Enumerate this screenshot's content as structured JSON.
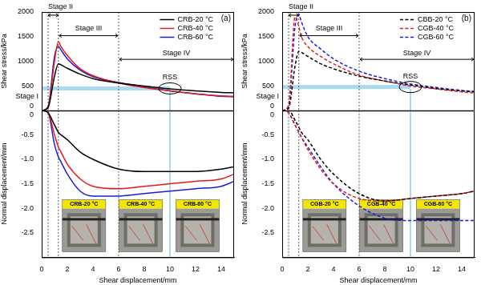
{
  "chart_data": [
    {
      "type": "line",
      "title": "(a)",
      "x": [
        0,
        0.5,
        1,
        1.3,
        1.5,
        2,
        3,
        4,
        6,
        8,
        10,
        12,
        14,
        15
      ],
      "xlim": [
        0,
        15
      ],
      "xticks": [
        0,
        2,
        4,
        6,
        8,
        10,
        12,
        14
      ],
      "xlabel": "Shear displacement/mm",
      "ylabel": "Shear stress/kPa",
      "ylim": [
        0,
        2000
      ],
      "yticks": [
        0,
        500,
        1000,
        1500,
        2000
      ],
      "y2label": "Normal displacement/mm",
      "y2lim": [
        -3,
        0
      ],
      "y2ticks": [
        -2.5,
        {
          "value": -2,
          "label": "-2.0"
        },
        -1.5,
        {
          "value": -1,
          "label": "-1.0"
        },
        -0.5,
        0
      ],
      "grid": false,
      "legend": "top-right",
      "series": [
        {
          "name": "CRB-20 °C",
          "color": "#000000",
          "line_style": "solid",
          "values": [
            0,
            60,
            700,
            950,
            930,
            860,
            740,
            650,
            560,
            500,
            440,
            400,
            370,
            360
          ]
        },
        {
          "name": "CRB-40 °C",
          "color": "#e41a1c",
          "line_style": "solid",
          "values": [
            0,
            80,
            1000,
            1400,
            1300,
            1120,
            850,
            710,
            560,
            470,
            400,
            340,
            300,
            290
          ]
        },
        {
          "name": "CRB-60 °C",
          "color": "#1c1cd6",
          "line_style": "solid",
          "values": [
            0,
            80,
            1100,
            1300,
            1230,
            1050,
            820,
            690,
            570,
            480,
            400,
            340,
            290,
            280
          ]
        },
        {
          "name": "CRB-20 °C",
          "color": "#000000",
          "line_style": "solid",
          "axis": "y2",
          "values": [
            0,
            -0.05,
            -0.3,
            -0.45,
            -0.5,
            -0.6,
            -0.85,
            -1.0,
            -1.2,
            -1.25,
            -1.25,
            -1.25,
            -1.2,
            -1.15
          ]
        },
        {
          "name": "CRB-40 °C",
          "color": "#e41a1c",
          "line_style": "solid",
          "axis": "y2",
          "values": [
            0,
            -0.05,
            -0.5,
            -0.75,
            -0.85,
            -1.1,
            -1.4,
            -1.55,
            -1.6,
            -1.55,
            -1.5,
            -1.45,
            -1.4,
            -1.3
          ]
        },
        {
          "name": "CRB-60 °C",
          "color": "#1c1cd6",
          "line_style": "solid",
          "axis": "y2",
          "values": [
            0,
            -0.05,
            -0.7,
            -0.95,
            -1.05,
            -1.3,
            -1.65,
            -1.75,
            -1.75,
            -1.7,
            -1.65,
            -1.6,
            -1.55,
            -1.45
          ]
        }
      ],
      "stages": [
        {
          "label": "Stage I",
          "start": 0,
          "end": 0.5
        },
        {
          "label": "Stage II",
          "start": 0.5,
          "end": 1.3
        },
        {
          "label": "Stage III",
          "start": 1.3,
          "end": 6
        },
        {
          "label": "Stage IV",
          "start": 6,
          "end": 15
        }
      ],
      "rss": {
        "label": "RSS",
        "x": 10,
        "band": [
          410,
          490
        ]
      },
      "photos": [
        "CRB-20 °C",
        "CRB-40 °C",
        "CRB-60 °C"
      ]
    },
    {
      "type": "line",
      "title": "(b)",
      "x": [
        0,
        0.5,
        1,
        1.3,
        1.5,
        2,
        3,
        4,
        6,
        8,
        10,
        12,
        14,
        15
      ],
      "xlim": [
        0,
        15
      ],
      "xticks": [
        0,
        2,
        4,
        6,
        8,
        10,
        12,
        14
      ],
      "xlabel": "Shear displacement/mm",
      "ylabel": "Shear stress/kPa",
      "ylim": [
        0,
        2000
      ],
      "yticks": [
        0,
        500,
        1000,
        1500,
        2000
      ],
      "y2label": "Normal displacement/mm",
      "y2lim": [
        -3,
        0
      ],
      "y2ticks": [
        -2.5,
        {
          "value": -2,
          "label": "-2.0"
        },
        -1.5,
        {
          "value": -1,
          "label": "-1.0"
        },
        -0.5,
        0
      ],
      "grid": false,
      "legend": "top-right",
      "series": [
        {
          "name": "CBB-20 °C",
          "color": "#000000",
          "line_style": "dashed",
          "values": [
            0,
            50,
            900,
            1200,
            1180,
            1100,
            950,
            850,
            700,
            600,
            520,
            450,
            400,
            380
          ]
        },
        {
          "name": "CGB-40 °C",
          "color": "#e41a1c",
          "line_style": "dashed",
          "values": [
            0,
            100,
            1900,
            1700,
            1500,
            1300,
            1100,
            950,
            720,
            600,
            500,
            440,
            380,
            360
          ]
        },
        {
          "name": "CGB-60 °C",
          "color": "#1c1cd6",
          "line_style": "dashed",
          "values": [
            0,
            100,
            1700,
            1950,
            1800,
            1500,
            1250,
            1050,
            800,
            650,
            540,
            470,
            410,
            390
          ]
        },
        {
          "name": "CBB-20 °C",
          "color": "#000000",
          "line_style": "dashed",
          "axis": "y2",
          "values": [
            0,
            0,
            -0.2,
            -0.35,
            -0.45,
            -0.6,
            -1.0,
            -1.3,
            -1.7,
            -1.85,
            -1.8,
            -1.75,
            -1.7,
            -1.65
          ]
        },
        {
          "name": "CGB-40 °C",
          "color": "#e41a1c",
          "line_style": "dashed",
          "axis": "y2",
          "values": [
            0,
            -0.05,
            -0.3,
            -0.45,
            -0.55,
            -0.8,
            -1.2,
            -1.5,
            -1.8,
            -1.85,
            -1.8,
            -1.75,
            -1.7,
            -1.65
          ]
        },
        {
          "name": "CGB-60 °C",
          "color": "#1c1cd6",
          "line_style": "dashed",
          "axis": "y2",
          "values": [
            0,
            -0.05,
            -0.3,
            -0.45,
            -0.55,
            -0.75,
            -1.15,
            -1.5,
            -1.95,
            -2.2,
            -2.25,
            -2.25,
            -2.25,
            -2.25
          ]
        }
      ],
      "stages": [
        {
          "label": "Stage I",
          "start": 0,
          "end": 0.5
        },
        {
          "label": "Stage II",
          "start": 0.5,
          "end": 1.3
        },
        {
          "label": "Stage III",
          "start": 1.3,
          "end": 6
        },
        {
          "label": "Stage IV",
          "start": 6,
          "end": 15
        }
      ],
      "rss": {
        "label": "RSS",
        "x": 10,
        "band": [
          440,
          520
        ]
      },
      "photos": [
        "CGB-20 °C",
        "CGB-40 °C",
        "CGB-60 °C"
      ]
    }
  ]
}
